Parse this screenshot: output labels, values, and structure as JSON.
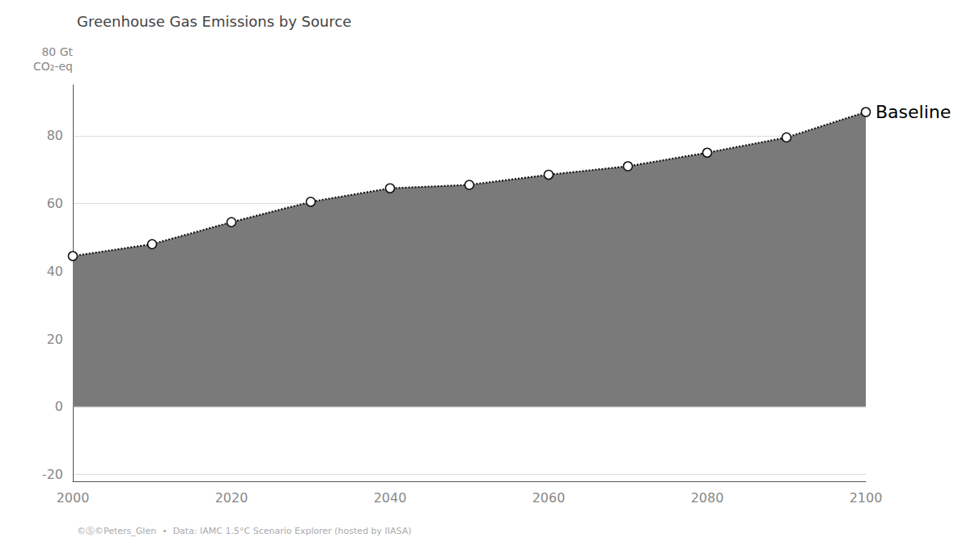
{
  "chart_data": {
    "type": "area",
    "title": "Greenhouse Gas Emissions by Source",
    "ylabel": "80 Gt\nCO₂-eq",
    "footnote": "©Ⓢ©Peters_Glen  •  Data: IAMC 1.5°C Scenario Explorer (hosted by IIASA)",
    "x": [
      2000,
      2010,
      2020,
      2030,
      2040,
      2050,
      2060,
      2070,
      2080,
      2090,
      2100
    ],
    "series": [
      {
        "type": "area",
        "color": "#7a7a7a",
        "values": [
          44.5,
          48.0,
          54.5,
          60.5,
          64.5,
          65.5,
          68.5,
          71.0,
          75.0,
          79.5,
          87.0
        ]
      },
      {
        "type": "line",
        "color": "#111111",
        "line_style": "dotted",
        "marker": "circle",
        "values": [
          44.5,
          48.0,
          54.5,
          60.5,
          64.5,
          65.5,
          68.5,
          71.0,
          75.0,
          79.5,
          87.0
        ]
      }
    ],
    "annotations": [
      {
        "text": "Baseline",
        "x": 2100,
        "y": 87.0
      }
    ],
    "xlim": [
      2000,
      2100
    ],
    "xticks": [
      2000,
      2020,
      2040,
      2060,
      2080,
      2100
    ],
    "ylim": [
      -22,
      95
    ],
    "yticks": [
      -20,
      0,
      20,
      40,
      60,
      80
    ],
    "grid": true
  }
}
